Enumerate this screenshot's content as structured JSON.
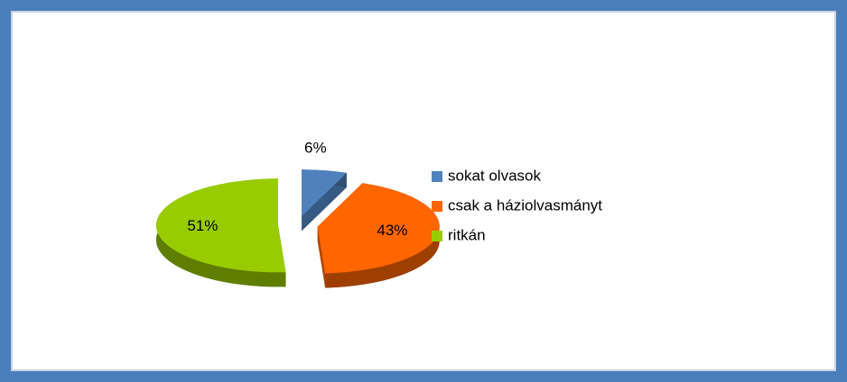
{
  "chart_data": {
    "type": "pie",
    "categories": [
      "sokat olvasok",
      "csak a háziolvasmányt",
      "ritkán"
    ],
    "values": [
      6,
      43,
      51
    ],
    "value_labels": [
      "6%",
      "43%",
      "51%"
    ],
    "colors": [
      "#4f81bd",
      "#ff6600",
      "#99cc00"
    ],
    "legend": "right"
  }
}
